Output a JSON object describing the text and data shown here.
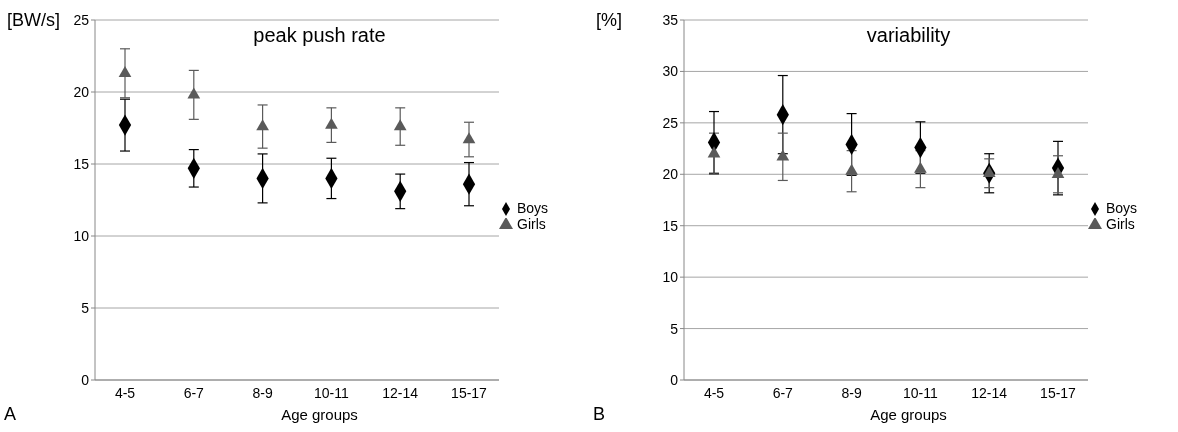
{
  "chart_data": [
    {
      "type": "scatter",
      "title": "peak push rate",
      "ylabel": "[BW/s]",
      "xlabel": "Age groups",
      "categories": [
        "4-5",
        "6-7",
        "8-9",
        "10-11",
        "12-14",
        "15-17"
      ],
      "series": [
        {
          "name": "Boys",
          "color": "#000000",
          "marker": "diamond",
          "values": [
            17.7,
            14.7,
            14.0,
            14.0,
            13.1,
            13.6
          ],
          "errors": [
            1.8,
            1.3,
            1.7,
            1.4,
            1.2,
            1.5
          ]
        },
        {
          "name": "Girls",
          "color": "#5a5a5a",
          "marker": "triangle",
          "values": [
            21.3,
            19.8,
            17.6,
            17.7,
            17.6,
            16.7
          ],
          "errors": [
            1.7,
            1.7,
            1.5,
            1.2,
            1.3,
            1.2
          ]
        }
      ],
      "ylim": [
        0,
        25
      ],
      "yticks": [
        0,
        5,
        10,
        15,
        20,
        25
      ],
      "grid": "y",
      "legend": "right",
      "annotations": [
        "A"
      ]
    },
    {
      "type": "scatter",
      "title": "variability",
      "ylabel": "[%]",
      "xlabel": "Age groups",
      "categories": [
        "4-5",
        "6-7",
        "8-9",
        "10-11",
        "12-14",
        "15-17"
      ],
      "series": [
        {
          "name": "Boys",
          "color": "#000000",
          "marker": "diamond",
          "values": [
            23.1,
            25.8,
            22.9,
            22.6,
            20.1,
            20.6
          ],
          "errors": [
            3.0,
            3.8,
            3.0,
            2.5,
            1.9,
            2.6
          ]
        },
        {
          "name": "Girls",
          "color": "#5a5a5a",
          "marker": "triangle",
          "values": [
            22.0,
            21.7,
            20.3,
            20.5,
            20.1,
            20.0
          ],
          "errors": [
            2.0,
            2.3,
            2.0,
            1.8,
            1.4,
            1.8
          ]
        }
      ],
      "ylim": [
        0,
        35
      ],
      "yticks": [
        0,
        5,
        10,
        15,
        20,
        25,
        30,
        35
      ],
      "grid": "y",
      "legend": "right",
      "annotations": [
        "B"
      ]
    }
  ]
}
